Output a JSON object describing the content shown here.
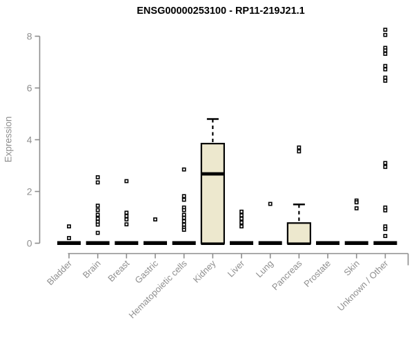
{
  "colors": {
    "box_fill": "#EDE8CE",
    "box_border": "#000000",
    "point_stroke": "#000000",
    "point_fill": "#ffffff",
    "axis": "#8c8c8c",
    "text": "#8f8f8f",
    "title": "#000000",
    "background": "#ffffff"
  },
  "chart_data": {
    "type": "boxplot",
    "title": "ENSG00000253100 - RP11-219J21.1",
    "ylabel": "Expression",
    "ylim": [
      0,
      8.5
    ],
    "yticks": [
      0,
      2,
      4,
      6,
      8
    ],
    "grid": false,
    "categories": [
      "Bladder",
      "Brain",
      "Breast",
      "Gastric",
      "Hematopoietic cells",
      "Kidney",
      "Liver",
      "Lung",
      "Pancreas",
      "Prostate",
      "Skin",
      "Unknown / Other"
    ],
    "boxes": [
      {
        "category": "Bladder",
        "q1": 0,
        "median": 0,
        "q3": 0,
        "whisker_low": 0,
        "whisker_high": 0,
        "points": [
          0.65,
          0.2
        ]
      },
      {
        "category": "Brain",
        "q1": 0,
        "median": 0,
        "q3": 0,
        "whisker_low": 0,
        "whisker_high": 0,
        "points": [
          2.55,
          2.35,
          1.45,
          1.28,
          1.1,
          0.95,
          0.83,
          0.72,
          0.4
        ]
      },
      {
        "category": "Breast",
        "q1": 0,
        "median": 0,
        "q3": 0,
        "whisker_low": 0,
        "whisker_high": 0,
        "points": [
          2.4,
          1.18,
          1.05,
          0.92,
          0.73
        ]
      },
      {
        "category": "Gastric",
        "q1": 0,
        "median": 0,
        "q3": 0,
        "whisker_low": 0,
        "whisker_high": 0,
        "points": [
          0.92
        ]
      },
      {
        "category": "Hematopoietic cells",
        "q1": 0,
        "median": 0,
        "q3": 0,
        "whisker_low": 0,
        "whisker_high": 0,
        "points": [
          2.85,
          1.82,
          1.68,
          1.38,
          1.28,
          1.1,
          0.98,
          0.85,
          0.72,
          0.6,
          0.52
        ]
      },
      {
        "category": "Kidney",
        "q1": 0,
        "median": 2.68,
        "q3": 3.85,
        "whisker_low": 0,
        "whisker_high": 4.8,
        "points": []
      },
      {
        "category": "Liver",
        "q1": 0,
        "median": 0,
        "q3": 0,
        "whisker_low": 0,
        "whisker_high": 0,
        "points": [
          1.22,
          1.08,
          0.95,
          0.8,
          0.65
        ]
      },
      {
        "category": "Lung",
        "q1": 0,
        "median": 0,
        "q3": 0,
        "whisker_low": 0,
        "whisker_high": 0,
        "points": [
          1.52
        ]
      },
      {
        "category": "Pancreas",
        "q1": 0,
        "median": 0,
        "q3": 0.78,
        "whisker_low": 0,
        "whisker_high": 1.5,
        "points": [
          3.7,
          3.55
        ]
      },
      {
        "category": "Prostate",
        "q1": 0,
        "median": 0,
        "q3": 0,
        "whisker_low": 0,
        "whisker_high": 0,
        "points": []
      },
      {
        "category": "Skin",
        "q1": 0,
        "median": 0,
        "q3": 0,
        "whisker_low": 0,
        "whisker_high": 0,
        "points": [
          1.65,
          1.58,
          1.35
        ]
      },
      {
        "category": "Unknown / Other",
        "q1": 0,
        "median": 0,
        "q3": 0,
        "whisker_low": 0,
        "whisker_high": 0,
        "points": [
          8.25,
          8.05,
          7.55,
          7.45,
          7.32,
          6.85,
          6.72,
          6.4,
          6.28,
          3.1,
          2.95,
          1.38,
          1.27,
          0.65,
          0.55,
          0.28
        ]
      }
    ]
  }
}
